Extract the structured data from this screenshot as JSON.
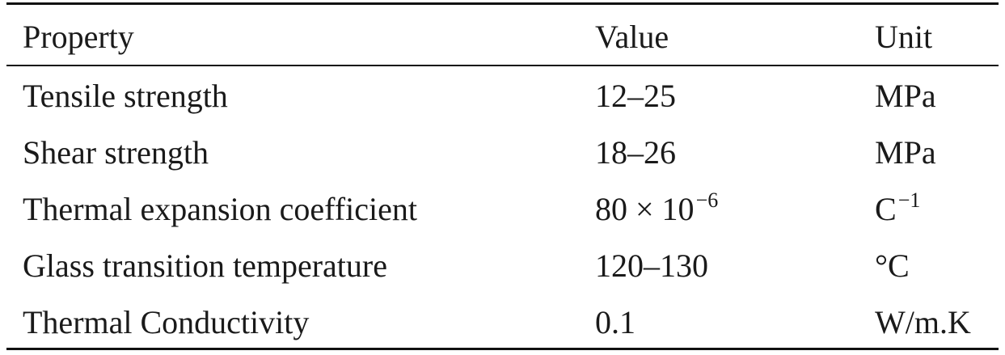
{
  "table": {
    "headers": {
      "property": "Property",
      "value": "Value",
      "unit": "Unit"
    },
    "rows": [
      {
        "property": "Tensile strength",
        "value": "12–25",
        "value_sup": "",
        "unit": "MPa",
        "unit_sup": ""
      },
      {
        "property": "Shear strength",
        "value": "18–26",
        "value_sup": "",
        "unit": "MPa",
        "unit_sup": ""
      },
      {
        "property": "Thermal expansion coefficient",
        "value": "80 × 10",
        "value_sup": "−6",
        "unit": "C",
        "unit_sup": "−1"
      },
      {
        "property": "Glass transition temperature",
        "value": "120–130",
        "value_sup": "",
        "unit": "°C",
        "unit_sup": ""
      },
      {
        "property": "Thermal Conductivity",
        "value": "0.1",
        "value_sup": "",
        "unit": "W/m.K",
        "unit_sup": ""
      }
    ]
  }
}
